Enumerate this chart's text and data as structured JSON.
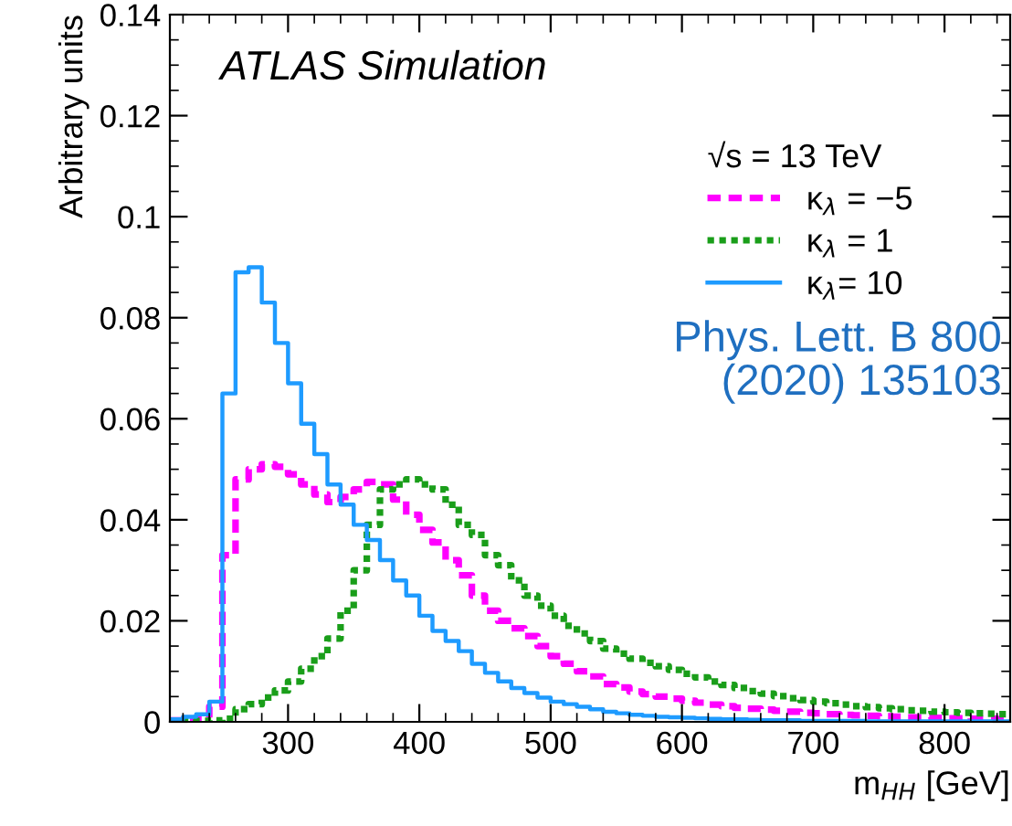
{
  "chart_data": {
    "type": "histogram",
    "xlabel": "m$_{HH}$ [GeV]",
    "ylabel": "Arbitrary units",
    "legend_title": "√s = 13 TeV",
    "legend": "top right",
    "grid": false,
    "annotations": [
      "ATLAS Simulation",
      "Phys. Lett. B 800\n(2020) 135103"
    ],
    "xlim": [
      210,
      850
    ],
    "ylim": [
      0,
      0.14
    ],
    "xticks": [
      300,
      400,
      500,
      600,
      700,
      800
    ],
    "yticks": [
      0,
      0.02,
      0.04,
      0.06,
      0.08,
      0.1,
      0.12,
      0.14
    ],
    "bins": [
      210,
      220,
      230,
      240,
      250,
      260,
      270,
      280,
      290,
      300,
      310,
      320,
      330,
      340,
      350,
      360,
      370,
      380,
      390,
      400,
      410,
      420,
      430,
      440,
      450,
      460,
      470,
      480,
      490,
      500,
      510,
      520,
      530,
      540,
      550,
      560,
      570,
      580,
      590,
      600,
      610,
      620,
      630,
      640,
      650,
      660,
      670,
      680,
      690,
      700,
      710,
      720,
      730,
      740,
      750,
      760,
      770,
      780,
      790,
      800,
      810,
      820,
      830,
      840,
      850
    ],
    "series": [
      {
        "name": "κ$_{λ}$ = −5",
        "color": "#ff00ff",
        "line_style": "dashed",
        "values": [
          0.0003,
          0.0005,
          0.0008,
          0.003,
          0.033,
          0.048,
          0.05,
          0.051,
          0.0505,
          0.049,
          0.047,
          0.045,
          0.0435,
          0.0445,
          0.046,
          0.0475,
          0.047,
          0.044,
          0.041,
          0.038,
          0.0355,
          0.032,
          0.029,
          0.025,
          0.022,
          0.02,
          0.0185,
          0.017,
          0.015,
          0.013,
          0.0115,
          0.01,
          0.009,
          0.0075,
          0.0068,
          0.006,
          0.0055,
          0.005,
          0.0046,
          0.0042,
          0.0038,
          0.0034,
          0.0031,
          0.0028,
          0.0026,
          0.0024,
          0.0022,
          0.002,
          0.0018,
          0.0017,
          0.0015,
          0.0014,
          0.0013,
          0.0012,
          0.0011,
          0.001,
          0.0009,
          0.0009,
          0.0008,
          0.0007,
          0.0007,
          0.0006,
          0.0006,
          0.0005
        ]
      },
      {
        "name": "κ$_{λ}$ = 1",
        "color": "#1a9e1a",
        "line_style": "dotted",
        "values": [
          0.0001,
          0.0001,
          0.0002,
          0.0003,
          0.0006,
          0.0025,
          0.0035,
          0.0048,
          0.0062,
          0.008,
          0.0105,
          0.013,
          0.0165,
          0.022,
          0.03,
          0.039,
          0.046,
          0.047,
          0.048,
          0.047,
          0.046,
          0.043,
          0.039,
          0.037,
          0.033,
          0.031,
          0.028,
          0.025,
          0.023,
          0.021,
          0.019,
          0.0175,
          0.016,
          0.0145,
          0.0135,
          0.0125,
          0.0117,
          0.011,
          0.0103,
          0.0095,
          0.0088,
          0.008,
          0.0073,
          0.0067,
          0.0061,
          0.0056,
          0.0051,
          0.0047,
          0.0043,
          0.004,
          0.0037,
          0.0034,
          0.0031,
          0.0029,
          0.0027,
          0.0025,
          0.0023,
          0.0022,
          0.002,
          0.0019,
          0.0018,
          0.0017,
          0.0016,
          0.0015
        ]
      },
      {
        "name": "κ$_{λ}$= 10",
        "color": "#1e9bff",
        "line_style": "solid",
        "values": [
          0.0005,
          0.001,
          0.0015,
          0.004,
          0.065,
          0.089,
          0.09,
          0.083,
          0.075,
          0.067,
          0.059,
          0.053,
          0.047,
          0.043,
          0.039,
          0.036,
          0.032,
          0.028,
          0.025,
          0.021,
          0.018,
          0.016,
          0.014,
          0.0115,
          0.0097,
          0.008,
          0.0067,
          0.0057,
          0.0048,
          0.004,
          0.0035,
          0.003,
          0.0025,
          0.002,
          0.0017,
          0.0014,
          0.0012,
          0.001,
          0.0009,
          0.0008,
          0.0007,
          0.0006,
          0.0005,
          0.0005,
          0.0004,
          0.0003,
          0.0003,
          0.0003,
          0.0002,
          0.0002,
          0.0002,
          0.0002,
          0.0002,
          0.0001,
          0.0001,
          0.0001,
          0.0001,
          0.0001,
          0.0001,
          0.0001,
          0.0001,
          0.0001,
          0.0001,
          0.0001
        ]
      }
    ]
  }
}
